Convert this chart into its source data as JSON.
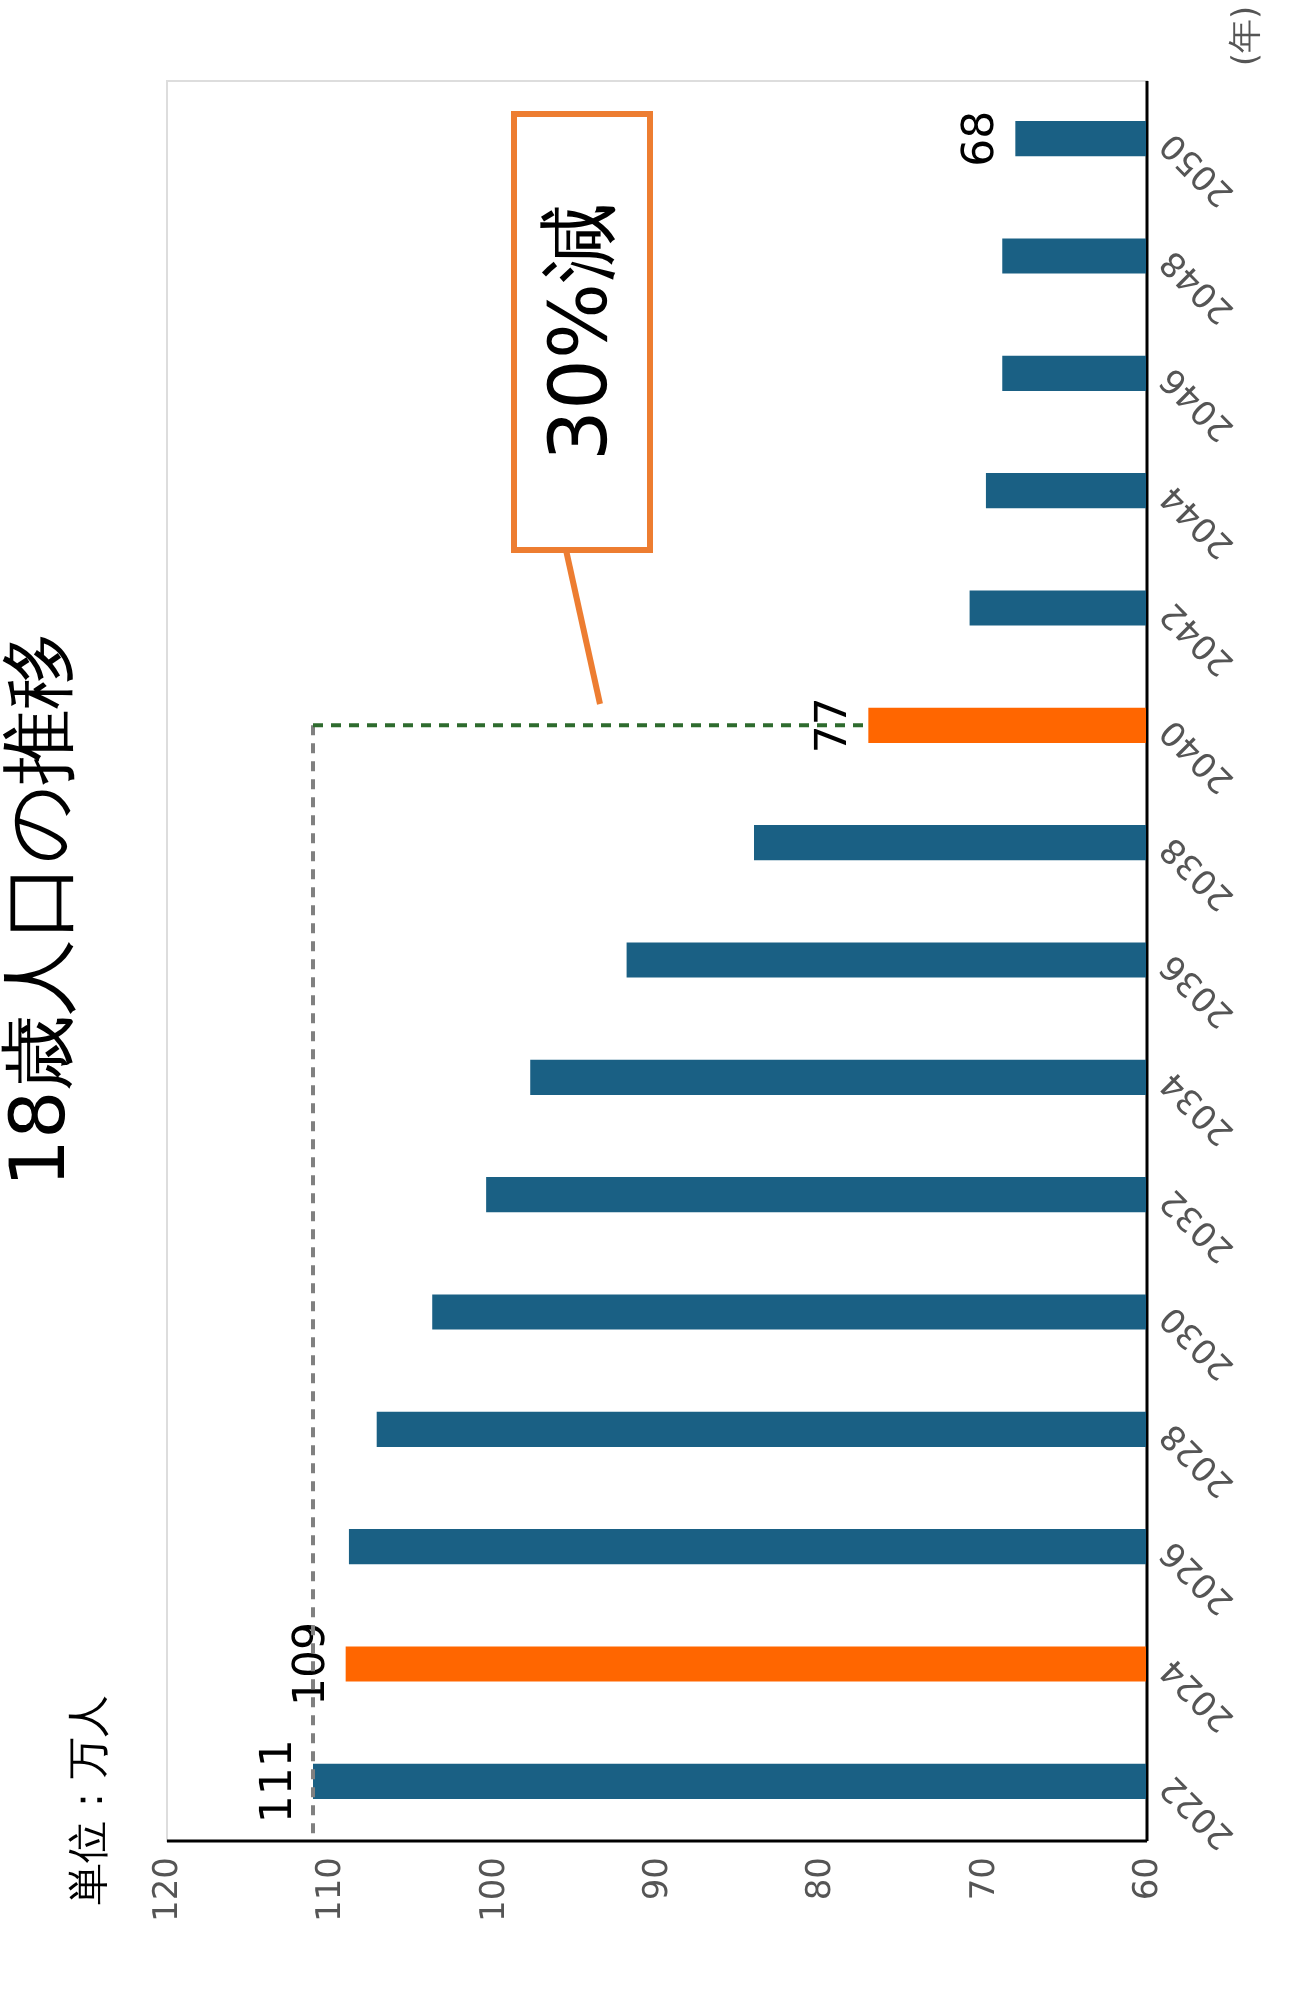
{
  "chart_data": {
    "type": "bar",
    "orientation": "horizontal",
    "title": "18歳人口の推移",
    "ylabel": "(年)",
    "categories": [
      "2050",
      "2048",
      "2046",
      "2044",
      "2042",
      "2040",
      "2038",
      "2036",
      "2034",
      "2032",
      "2030",
      "2028",
      "2026",
      "2024",
      "2022"
    ],
    "values": [
      68,
      68.8,
      68.8,
      69.8,
      70.8,
      77,
      84,
      91.8,
      97.7,
      100.4,
      103.7,
      107.1,
      108.8,
      109,
      111
    ],
    "colors": [
      "#1a6084",
      "#1a6084",
      "#1a6084",
      "#1a6084",
      "#1a6084",
      "#ff6600",
      "#1a6084",
      "#1a6084",
      "#1a6084",
      "#1a6084",
      "#1a6084",
      "#1a6084",
      "#1a6084",
      "#ff6600",
      "#1a6084"
    ],
    "value_labels": [
      "68",
      null,
      null,
      null,
      null,
      "77",
      null,
      null,
      null,
      null,
      null,
      null,
      null,
      "109",
      "111"
    ],
    "xlim": [
      120,
      60
    ],
    "xticks": [
      120,
      110,
      100,
      90,
      80,
      70,
      60
    ],
    "ref_lines": [
      {
        "axis": "x",
        "value": 111,
        "color": "#808080",
        "line_style": "dashed"
      },
      {
        "axis": "y",
        "value": "2040",
        "color": "#2e6b2e",
        "line_style": "dashed"
      }
    ],
    "annotations": [
      "単位：万人",
      "30%減"
    ],
    "grid": false
  }
}
